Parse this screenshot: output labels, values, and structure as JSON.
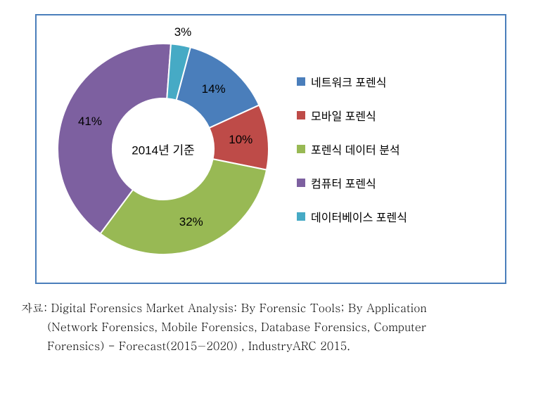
{
  "chart": {
    "type": "donut",
    "center_label": "2014년 기준",
    "center_fontsize": 17,
    "box_border_color": "#4a7ebb",
    "background_color": "#ffffff",
    "outer_radius": 150,
    "inner_radius": 72,
    "start_angle_deg": -75,
    "slices": [
      {
        "label": "네트워크 포렌식",
        "value": 14,
        "percent_text": "14%",
        "color": "#4a7ebb"
      },
      {
        "label": "모바일 포렌식",
        "value": 10,
        "percent_text": "10%",
        "color": "#be4b48"
      },
      {
        "label": "포렌식 데이터 분석",
        "value": 32,
        "percent_text": "32%",
        "color": "#98b954"
      },
      {
        "label": "컴퓨터 포렌식",
        "value": 41,
        "percent_text": "41%",
        "color": "#7d60a0"
      },
      {
        "label": "데이터베이스 포렌식",
        "value": 3,
        "percent_text": "3%",
        "color": "#46aac5"
      }
    ],
    "label_fontsize": 17,
    "legend_fontsize": 16,
    "legend_swatch_size": 12
  },
  "citation": {
    "prefix": "자료:",
    "line1": "Digital Forensics Market Analysis: By Forensic Tools; By Application",
    "line2": "(Network Forensics, Mobile Forensics, Database Forensics, Computer",
    "line3": "Forensics) - Forecast(2015−2020) , IndustryARC 2015.",
    "fontsize": 16
  }
}
